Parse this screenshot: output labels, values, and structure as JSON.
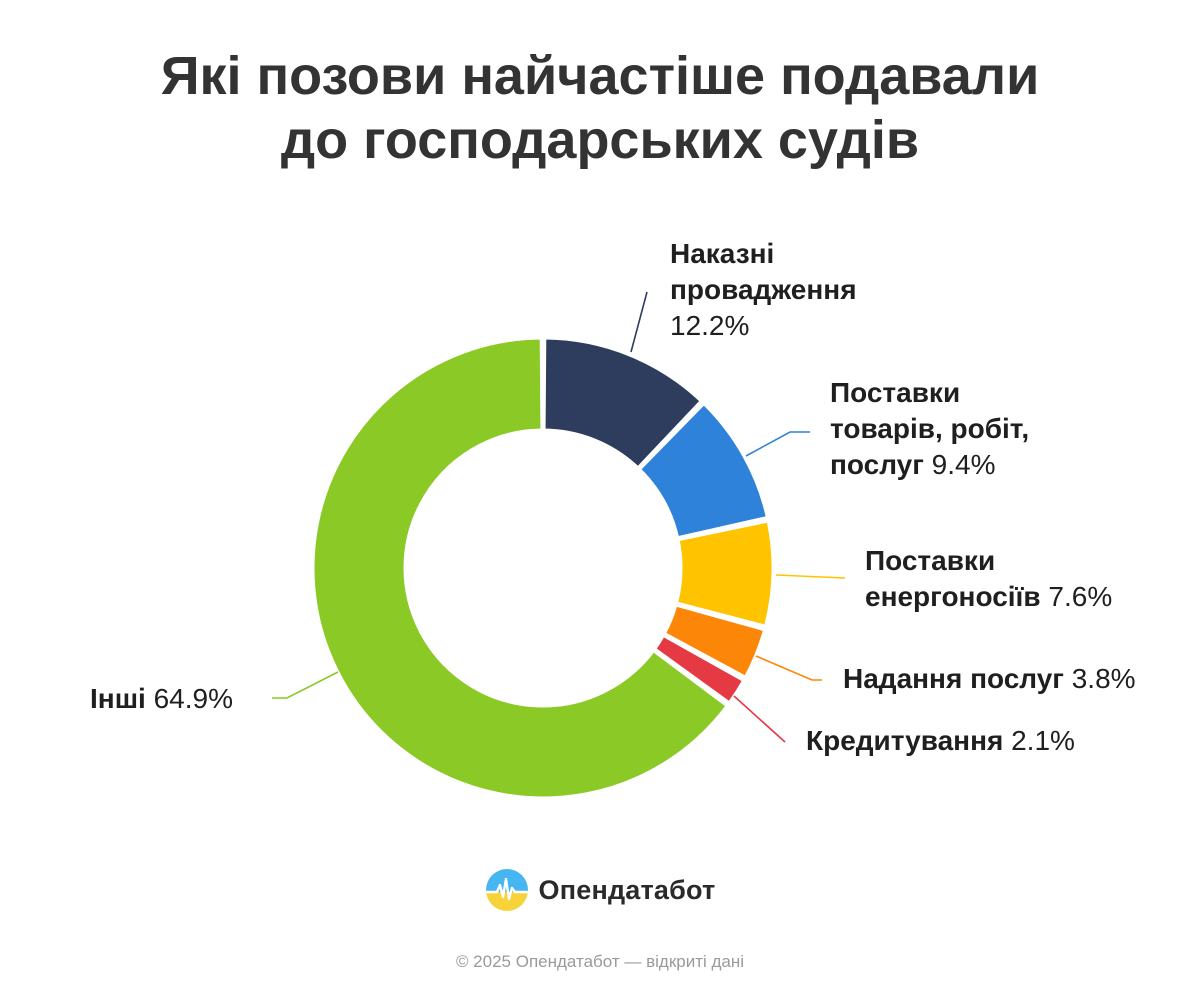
{
  "title_lines": [
    "Які позови найчастіше подавали",
    "до господарських судів"
  ],
  "chart_data": {
    "type": "pie",
    "style": "donut",
    "slices": [
      {
        "label_lines": [
          "Наказні",
          "провадження"
        ],
        "value_text": "12.2%",
        "value": 12.2,
        "color": "#2e3d5e"
      },
      {
        "label_lines": [
          "Поставки",
          "товарів, робіт,",
          "послуг"
        ],
        "value_text": "9.4%",
        "value": 9.4,
        "color": "#2e82da"
      },
      {
        "label_lines": [
          "Поставки",
          "енергоносіїв"
        ],
        "value_text": "7.6%",
        "value": 7.6,
        "color": "#ffc300"
      },
      {
        "label_lines": [
          "Надання послуг"
        ],
        "value_text": "3.8%",
        "value": 3.8,
        "color": "#fb8608"
      },
      {
        "label_lines": [
          "Кредитування"
        ],
        "value_text": "2.1%",
        "value": 2.1,
        "color": "#e53a44"
      },
      {
        "label_lines": [
          "Інші"
        ],
        "value_text": "64.9%",
        "value": 64.9,
        "color": "#8bc926"
      }
    ]
  },
  "brand": {
    "name": "Опендатабот"
  },
  "footer": "© 2025 Опендатабот — відкриті дані"
}
